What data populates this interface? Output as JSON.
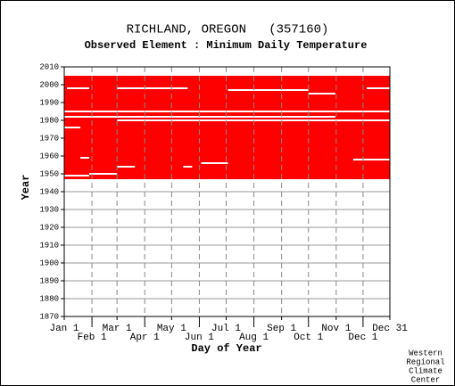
{
  "chart_data": {
    "type": "availability",
    "title": "RICHLAND, OREGON   (357160)",
    "subtitle": "Observed Element : Minimum Daily Temperature",
    "x_label": "Day of Year",
    "y_label": "Year",
    "credit": [
      "Western",
      "Regional",
      "Climate",
      "Center"
    ],
    "color": "#ff0000",
    "xlim": [
      1,
      365
    ],
    "ylim": [
      1870,
      2010
    ],
    "xticks": [
      {
        "value": 1,
        "label": "Jan 1"
      },
      {
        "value": 32,
        "label": "Feb 1"
      },
      {
        "value": 60,
        "label": "Mar 1"
      },
      {
        "value": 91,
        "label": "Apr 1"
      },
      {
        "value": 121,
        "label": "May 1"
      },
      {
        "value": 152,
        "label": "Jun 1"
      },
      {
        "value": 182,
        "label": "Jul 1"
      },
      {
        "value": 213,
        "label": "Aug 1"
      },
      {
        "value": 244,
        "label": "Sep 1"
      },
      {
        "value": 274,
        "label": "Oct 1"
      },
      {
        "value": 305,
        "label": "Nov 1"
      },
      {
        "value": 335,
        "label": "Dec 1"
      },
      {
        "value": 365,
        "label": "Dec 31"
      }
    ],
    "yticks": [
      1870,
      1880,
      1890,
      1900,
      1910,
      1920,
      1930,
      1940,
      1950,
      1960,
      1970,
      1980,
      1990,
      2000,
      2010
    ],
    "coverage": {
      "years": [
        1947,
        2005
      ],
      "days": [
        1,
        365
      ]
    },
    "gaps": [
      {
        "year": 1985,
        "days": [
          1,
          365
        ]
      },
      {
        "year": 1982,
        "days": [
          1,
          304
        ]
      },
      {
        "year": 1980,
        "days": [
          60,
          365
        ]
      },
      {
        "year": 1976,
        "days": [
          1,
          19
        ]
      },
      {
        "year": 1998,
        "days": [
          4,
          29
        ]
      },
      {
        "year": 1998,
        "days": [
          60,
          139
        ]
      },
      {
        "year": 1997,
        "days": [
          184,
          274
        ]
      },
      {
        "year": 1995,
        "days": [
          274,
          304
        ]
      },
      {
        "year": 1998,
        "days": [
          339,
          365
        ]
      },
      {
        "year": 1958,
        "days": [
          324,
          365
        ]
      },
      {
        "year": 1956,
        "days": [
          154,
          184
        ]
      },
      {
        "year": 1954,
        "days": [
          60,
          80
        ]
      },
      {
        "year": 1954,
        "days": [
          134,
          144
        ]
      },
      {
        "year": 1959,
        "days": [
          19,
          29
        ]
      },
      {
        "year": 1949,
        "days": [
          1,
          29
        ]
      },
      {
        "year": 1950,
        "days": [
          29,
          60
        ]
      }
    ]
  }
}
